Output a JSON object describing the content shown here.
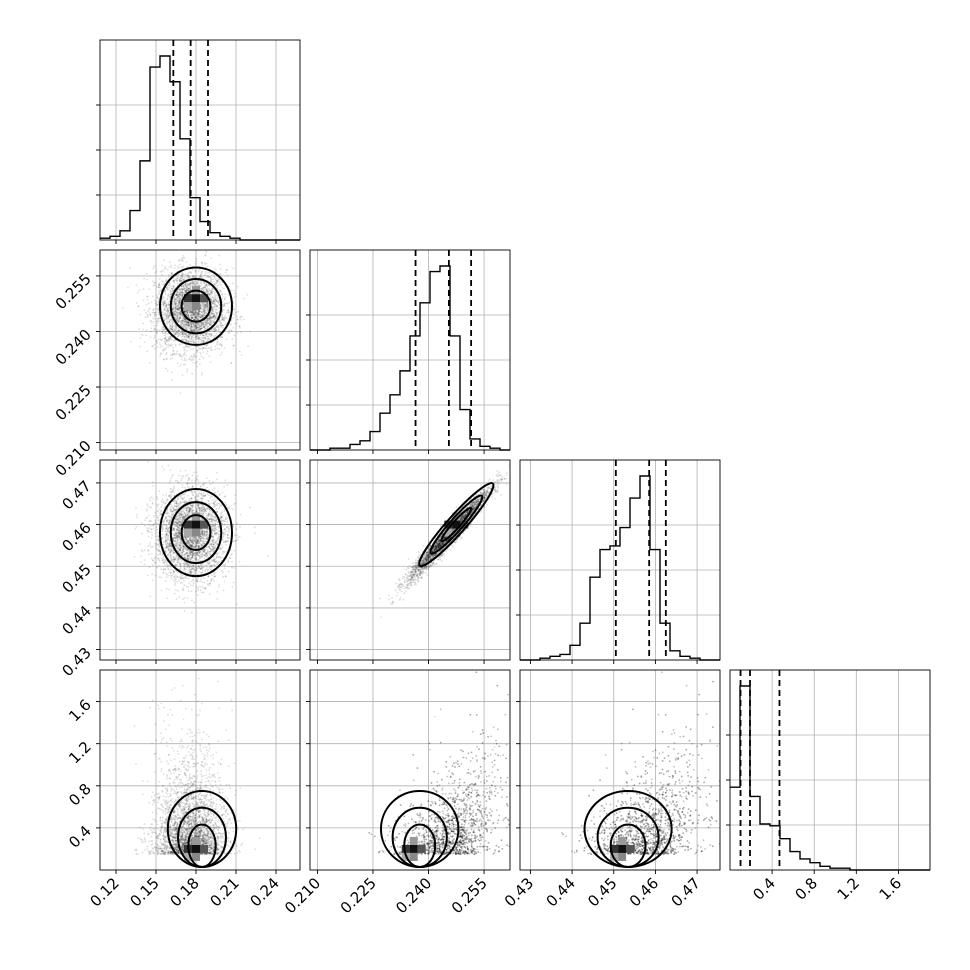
{
  "chart_data": {
    "type": "corner",
    "title": "",
    "parameters": [
      {
        "label": "",
        "range": [
          0.108,
          0.258
        ],
        "ticks": [
          0.12,
          0.15,
          0.18,
          0.21,
          0.24
        ],
        "tick_labels": [
          "0.12",
          "0.15",
          "0.18",
          "0.21",
          "0.24"
        ],
        "center": 0.176,
        "sigma": 0.0135,
        "quantiles": [
          0.163,
          0.176,
          0.189
        ],
        "hist_bins": [
          0.108,
          0.258,
          20
        ],
        "hist_counts": [
          0.01,
          0.02,
          0.05,
          0.16,
          0.43,
          0.94,
          1.0,
          0.86,
          0.55,
          0.23,
          0.1,
          0.04,
          0.02,
          0.01,
          0.0,
          0.0,
          0.0,
          0.0,
          0.0,
          0.0
        ]
      },
      {
        "label": "",
        "range": [
          0.208,
          0.262
        ],
        "ticks": [
          0.21,
          0.225,
          0.24,
          0.255
        ],
        "tick_labels": [
          "0.210",
          "0.225",
          "0.240",
          "0.255"
        ],
        "center": 0.2455,
        "sigma": 0.0055,
        "quantiles": [
          0.2365,
          0.2455,
          0.2515
        ],
        "hist_bins": [
          0.208,
          0.262,
          20
        ],
        "hist_counts": [
          0.0,
          0.0,
          0.01,
          0.01,
          0.03,
          0.05,
          0.1,
          0.2,
          0.3,
          0.43,
          0.62,
          0.8,
          0.97,
          1.0,
          0.62,
          0.22,
          0.06,
          0.02,
          0.01,
          0.0
        ]
      },
      {
        "label": "",
        "range": [
          0.4275,
          0.4755
        ],
        "ticks": [
          0.43,
          0.44,
          0.45,
          0.46,
          0.47
        ],
        "tick_labels": [
          "0.43",
          "0.44",
          "0.45",
          "0.46",
          "0.47"
        ],
        "center": 0.4575,
        "sigma": 0.0055,
        "quantiles": [
          0.4505,
          0.4585,
          0.4625
        ],
        "hist_bins": [
          0.4275,
          0.4755,
          20
        ],
        "hist_counts": [
          0.0,
          0.0,
          0.01,
          0.02,
          0.03,
          0.08,
          0.2,
          0.45,
          0.6,
          0.62,
          0.72,
          0.88,
          1.0,
          0.6,
          0.2,
          0.05,
          0.02,
          0.01,
          0.0,
          0.0
        ]
      },
      {
        "label": "",
        "range": [
          0.0,
          1.9
        ],
        "ticks": [
          0.4,
          0.8,
          1.2,
          1.6
        ],
        "tick_labels": [
          "0.4",
          "0.8",
          "1.2",
          "1.6"
        ],
        "center": 0.22,
        "sigma": 0.15,
        "quantiles": [
          0.1,
          0.19,
          0.47
        ],
        "hist_bins": [
          0.0,
          1.9,
          20
        ],
        "hist_counts": [
          0.45,
          1.0,
          0.4,
          0.25,
          0.24,
          0.17,
          0.1,
          0.06,
          0.04,
          0.02,
          0.01,
          0.01,
          0.0,
          0.0,
          0.0,
          0.0,
          0.0,
          0.0,
          0.0,
          0.0
        ]
      }
    ],
    "pairs": [
      {
        "x": 0,
        "y": 1,
        "mode": [
          0.18,
          0.249
        ]
      },
      {
        "x": 0,
        "y": 2,
        "mode": [
          0.18,
          0.46
        ]
      },
      {
        "x": 1,
        "y": 2,
        "mode": [
          0.2475,
          0.46
        ],
        "correlation": 0.97
      },
      {
        "x": 0,
        "y": 3,
        "mode": [
          0.18,
          0.2
        ]
      },
      {
        "x": 1,
        "y": 3,
        "mode": [
          0.236,
          0.2
        ]
      },
      {
        "x": 2,
        "y": 3,
        "mode": [
          0.452,
          0.2
        ]
      }
    ],
    "grid": true,
    "histogram_style": "step",
    "quantile_lines": "dashed"
  }
}
